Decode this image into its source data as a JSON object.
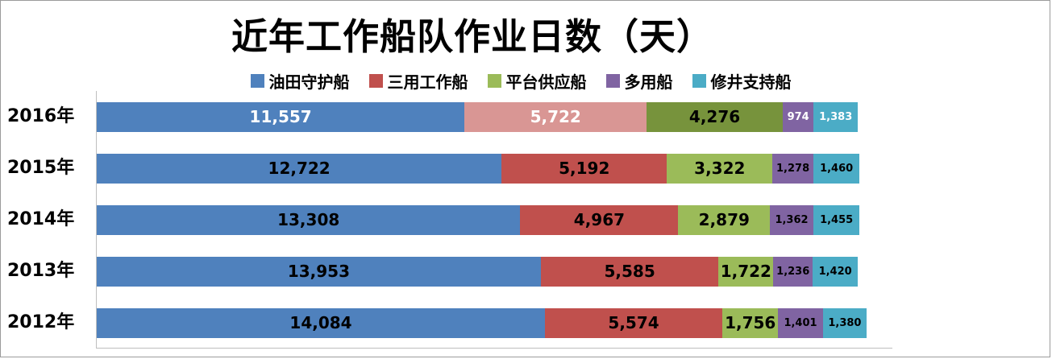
{
  "chart_data": {
    "type": "bar",
    "variant": "horizontal-stacked",
    "title": "近年工作船队作业日数（天）",
    "categories": [
      "2016年",
      "2015年",
      "2014年",
      "2013年",
      "2012年"
    ],
    "xlim": [
      0,
      25000
    ],
    "grid": false,
    "legend_position": "top",
    "highlight_category": "2016年",
    "axis_line_color": "#bfbfbf",
    "series": [
      {
        "name": "油田守护船",
        "color": "#4F81BD",
        "values": [
          11557,
          12722,
          13308,
          13953,
          14084
        ],
        "labels": [
          "11,557",
          "12,722",
          "13,308",
          "13,953",
          "14,084"
        ],
        "label_color": "#000000",
        "highlight_color": "#4F81BD",
        "highlight_label_color": "#FFFFFF",
        "label_size": "large"
      },
      {
        "name": "三用工作船",
        "color": "#C0504D",
        "values": [
          5722,
          5192,
          4967,
          5585,
          5574
        ],
        "labels": [
          "5,722",
          "5,192",
          "4,967",
          "5,585",
          "5,574"
        ],
        "label_color": "#000000",
        "highlight_color": "#D99694",
        "highlight_label_color": "#FFFFFF",
        "label_size": "large"
      },
      {
        "name": "平台供应船",
        "color": "#9BBB59",
        "values": [
          4276,
          3322,
          2879,
          1722,
          1756
        ],
        "labels": [
          "4,276",
          "3,322",
          "2,879",
          "1,722",
          "1,756"
        ],
        "label_color": "#000000",
        "highlight_color": "#77933C",
        "highlight_label_color": "#000000",
        "label_size": "large"
      },
      {
        "name": "多用船",
        "color": "#8064A2",
        "values": [
          974,
          1278,
          1362,
          1236,
          1401
        ],
        "labels": [
          "974",
          "1,278",
          "1,362",
          "1,236",
          "1,401"
        ],
        "label_color": "#000000",
        "highlight_color": "#8064A2",
        "highlight_label_color": "#FFFFFF",
        "label_size": "small"
      },
      {
        "name": "修井支持船",
        "color": "#4BACC6",
        "values": [
          1383,
          1460,
          1455,
          1420,
          1380
        ],
        "labels": [
          "1,383",
          "1,460",
          "1,455",
          "1,420",
          "1,380"
        ],
        "label_color": "#000000",
        "highlight_color": "#4BACC6",
        "highlight_label_color": "#FFFFFF",
        "label_size": "small"
      }
    ]
  }
}
